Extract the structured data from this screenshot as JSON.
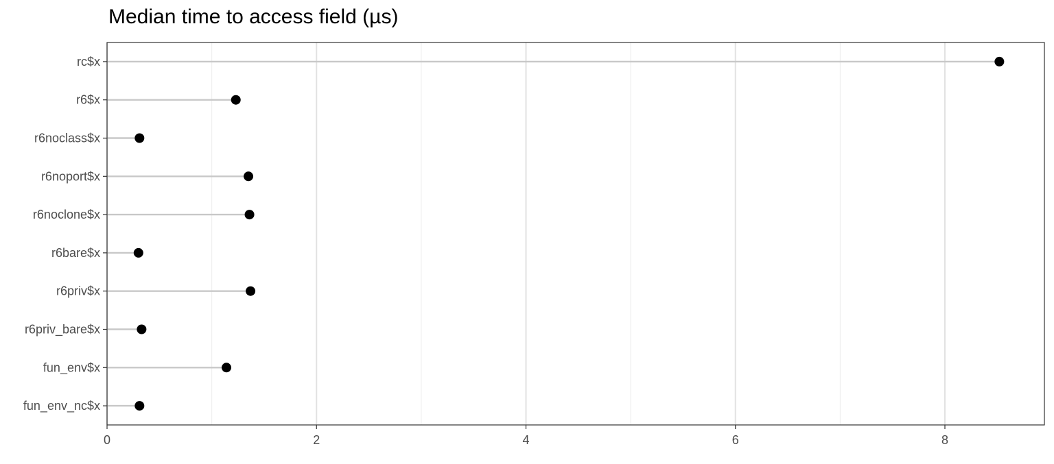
{
  "chart_data": {
    "type": "lollipop",
    "title": "Median time to access field (µs)",
    "xlabel": "",
    "ylabel": "",
    "categories": [
      "rc$x",
      "r6$x",
      "r6noclass$x",
      "r6noport$x",
      "r6noclone$x",
      "r6bare$x",
      "r6priv$x",
      "r6priv_bare$x",
      "fun_env$x",
      "fun_env_nc$x"
    ],
    "values": [
      8.52,
      1.23,
      0.31,
      1.35,
      1.36,
      0.3,
      1.37,
      0.33,
      1.14,
      0.31
    ],
    "xlim": [
      0,
      8.95
    ],
    "x_ticks": [
      0,
      2,
      4,
      6,
      8
    ],
    "x_minor_gridlines": [
      1,
      3,
      5,
      7
    ],
    "grid": true,
    "legend": "none"
  },
  "colors": {
    "point": "#000000",
    "segment": "#c8c8c8",
    "major_grid": "#e2e2e2",
    "minor_grid": "#efefef",
    "panel_border": "#333333",
    "axis_text": "#4d4d4d"
  }
}
